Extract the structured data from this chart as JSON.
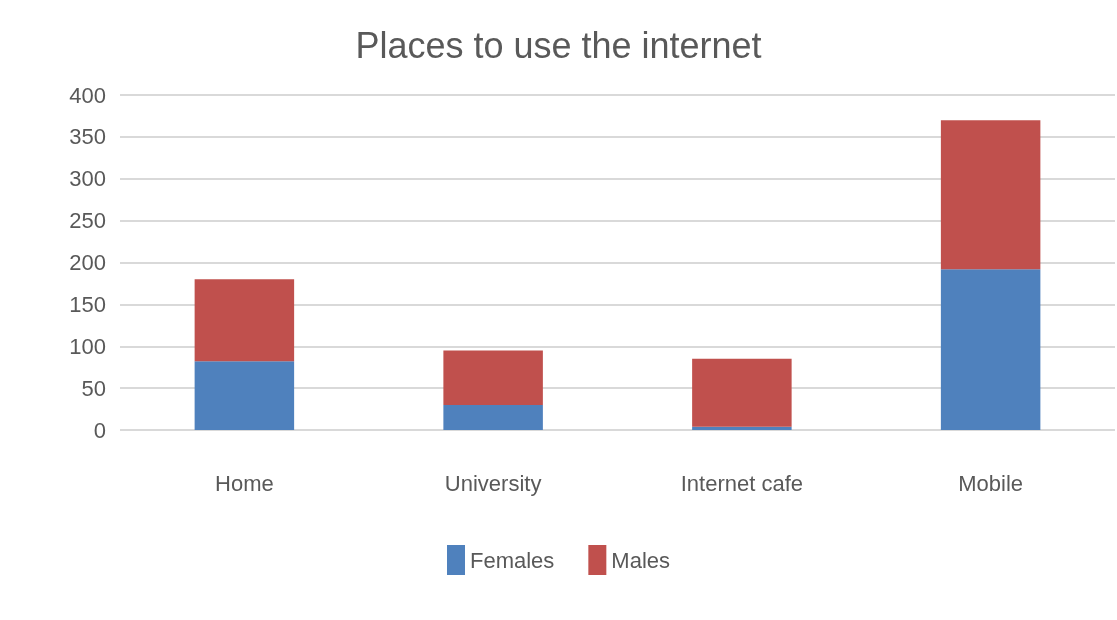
{
  "chart_data": {
    "type": "bar",
    "title": "Places to use the internet",
    "categories": [
      "Home",
      "University",
      "Internet cafe",
      "Mobile"
    ],
    "series": [
      {
        "name": "Females",
        "color": "#4f81bd",
        "values": [
          82,
          30,
          4,
          192
        ]
      },
      {
        "name": "Males",
        "color": "#c0504d",
        "values": [
          98,
          65,
          81,
          178
        ]
      }
    ],
    "stacked": true,
    "ylim": [
      0,
      400
    ],
    "yticks": [
      0,
      50,
      100,
      150,
      200,
      250,
      300,
      350,
      400
    ],
    "grid": "y",
    "legend": "bottom"
  }
}
